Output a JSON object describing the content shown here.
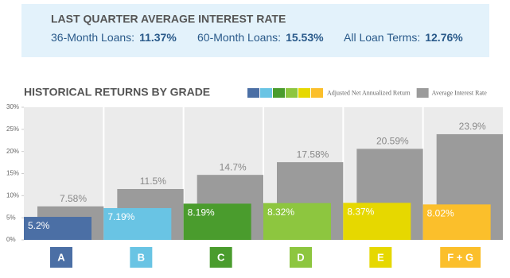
{
  "header": {
    "title": "LAST QUARTER AVERAGE INTEREST RATE",
    "items": [
      {
        "label": "36-Month Loans:",
        "value": "11.37%"
      },
      {
        "label": "60-Month Loans:",
        "value": "15.53%"
      },
      {
        "label": "All Loan Terms:",
        "value": "12.76%"
      }
    ]
  },
  "chart_data": {
    "type": "bar",
    "title": "HISTORICAL RETURNS BY GRADE",
    "categories": [
      "A",
      "B",
      "C",
      "D",
      "E",
      "F + G"
    ],
    "series": [
      {
        "name": "Adjusted Net Annualized Return",
        "colors": [
          "#4b6fa5",
          "#69c4e4",
          "#4a9c2d",
          "#8dc63f",
          "#e6d800",
          "#fbbf2b"
        ],
        "values": [
          5.2,
          7.19,
          8.19,
          8.32,
          8.37,
          8.02
        ],
        "value_labels": [
          "5.2%",
          "7.19%",
          "8.19%",
          "8.32%",
          "8.37%",
          "8.02%"
        ]
      },
      {
        "name": "Average Interest Rate",
        "color": "#9b9b9b",
        "values": [
          7.58,
          11.5,
          14.7,
          17.58,
          20.59,
          23.9
        ],
        "value_labels": [
          "7.58%",
          "11.5%",
          "14.7%",
          "17.58%",
          "20.59%",
          "23.9%"
        ]
      }
    ],
    "ylim": [
      0,
      30
    ],
    "yticks": [
      {
        "value": 0,
        "label": "0%"
      },
      {
        "value": 5,
        "label": "5%"
      },
      {
        "value": 10,
        "label": "10%"
      },
      {
        "value": 15,
        "label": "15%"
      },
      {
        "value": 20,
        "label": "20%"
      },
      {
        "value": 25,
        "label": "25%"
      },
      {
        "value": 30,
        "label": "30%"
      }
    ]
  }
}
